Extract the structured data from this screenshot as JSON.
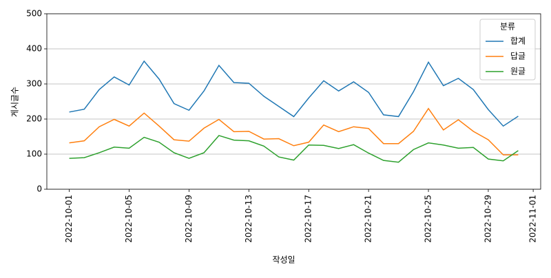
{
  "chart_data": {
    "type": "line",
    "x": [
      "2022-10-01",
      "2022-10-02",
      "2022-10-03",
      "2022-10-04",
      "2022-10-05",
      "2022-10-06",
      "2022-10-07",
      "2022-10-08",
      "2022-10-09",
      "2022-10-10",
      "2022-10-11",
      "2022-10-12",
      "2022-10-13",
      "2022-10-14",
      "2022-10-15",
      "2022-10-16",
      "2022-10-17",
      "2022-10-18",
      "2022-10-19",
      "2022-10-20",
      "2022-10-21",
      "2022-10-22",
      "2022-10-23",
      "2022-10-24",
      "2022-10-25",
      "2022-10-26",
      "2022-10-27",
      "2022-10-28",
      "2022-10-29",
      "2022-10-30",
      "2022-10-31"
    ],
    "series": [
      {
        "name": "합계",
        "color": "#1f77b4",
        "values": [
          220,
          228,
          284,
          320,
          297,
          365,
          314,
          244,
          225,
          280,
          353,
          304,
          302,
          265,
          236,
          207,
          260,
          309,
          280,
          306,
          276,
          212,
          207,
          278,
          362,
          295,
          316,
          284,
          227,
          180,
          208
        ]
      },
      {
        "name": "답글",
        "color": "#ff7f0e",
        "values": [
          132,
          138,
          178,
          199,
          180,
          217,
          180,
          141,
          137,
          174,
          199,
          164,
          165,
          143,
          144,
          124,
          134,
          183,
          164,
          178,
          173,
          130,
          130,
          165,
          230,
          169,
          198,
          165,
          141,
          98,
          98
        ]
      },
      {
        "name": "원글",
        "color": "#2ca02c",
        "values": [
          88,
          90,
          104,
          120,
          117,
          148,
          134,
          104,
          88,
          104,
          153,
          140,
          138,
          123,
          92,
          83,
          126,
          125,
          116,
          127,
          103,
          82,
          77,
          113,
          132,
          126,
          117,
          119,
          86,
          81,
          110
        ]
      }
    ],
    "xlabel": "작성일",
    "ylabel": "게시글수",
    "legend_title": "분류",
    "legend": "upper right",
    "ylim": [
      0,
      500
    ],
    "yticks": [
      0,
      100,
      200,
      300,
      400,
      500
    ],
    "xticks": [
      "2022-10-01",
      "2022-10-05",
      "2022-10-09",
      "2022-10-13",
      "2022-10-17",
      "2022-10-21",
      "2022-10-25",
      "2022-10-29",
      "2022-11-01"
    ],
    "grid": "y"
  }
}
